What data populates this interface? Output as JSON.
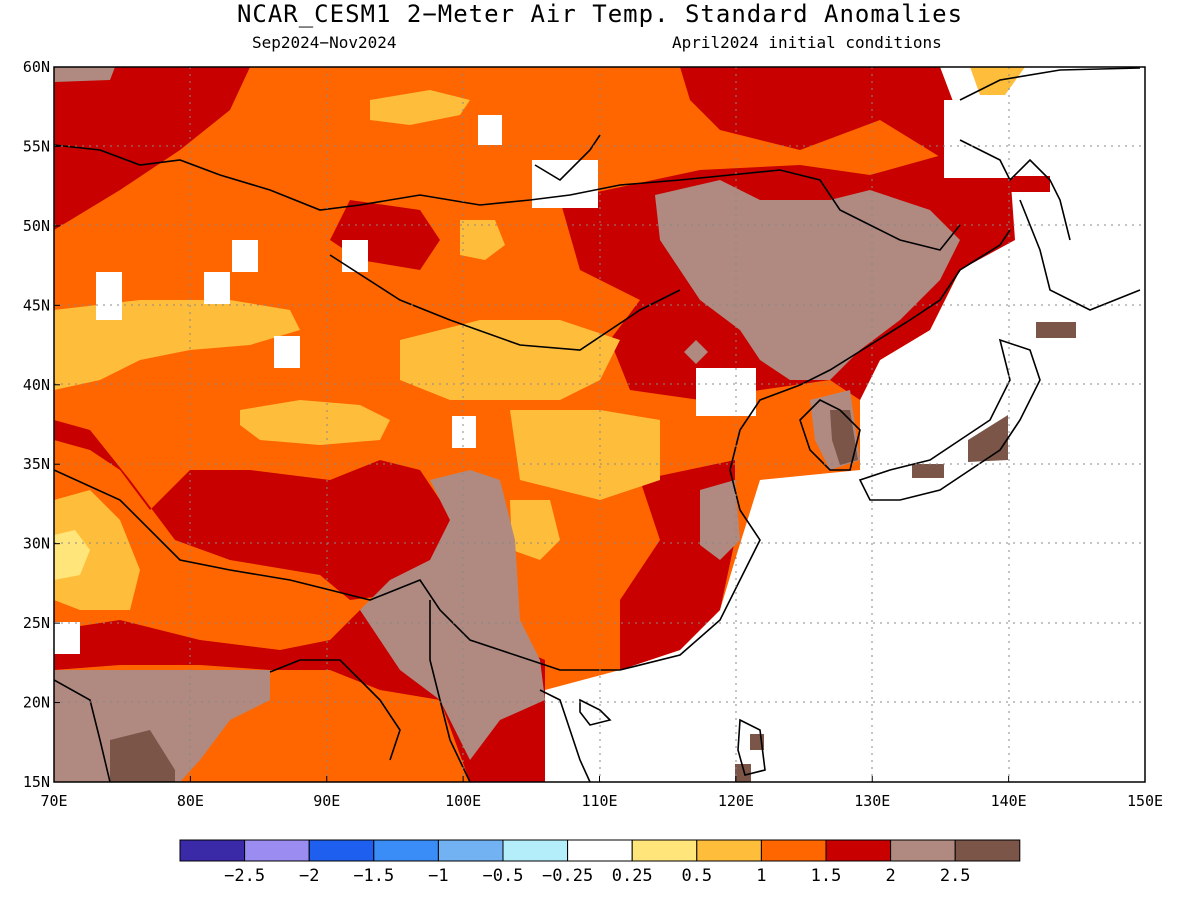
{
  "title": "NCAR_CESM1 2−Meter Air Temp. Standard Anomalies",
  "subtitle_left": "Sep2024−Nov2024",
  "subtitle_right": "April2024 initial conditions",
  "map": {
    "lon_range": [
      70,
      150
    ],
    "lat_range": [
      15,
      60
    ],
    "lat_ticks": [
      "60N",
      "55N",
      "50N",
      "45N",
      "40N",
      "35N",
      "30N",
      "25N",
      "20N",
      "15N"
    ],
    "lon_ticks": [
      "70E",
      "80E",
      "90E",
      "100E",
      "110E",
      "120E",
      "130E",
      "140E",
      "150E"
    ],
    "gridlines": "dotted"
  },
  "colorbar": {
    "colors": [
      "#3a2aa8",
      "#9a8cf0",
      "#1f5ff0",
      "#3a8df6",
      "#72b2f2",
      "#b4eefa",
      "#ffffff",
      "#ffe57a",
      "#ffbd3c",
      "#ff6600",
      "#c80000",
      "#b08a80",
      "#7a5548"
    ],
    "labels": [
      "−2.5",
      "−2",
      "−1.5",
      "−1",
      "−0.5",
      "−0.25",
      "0.25",
      "0.5",
      "1",
      "1.5",
      "2",
      "2.5"
    ]
  }
}
